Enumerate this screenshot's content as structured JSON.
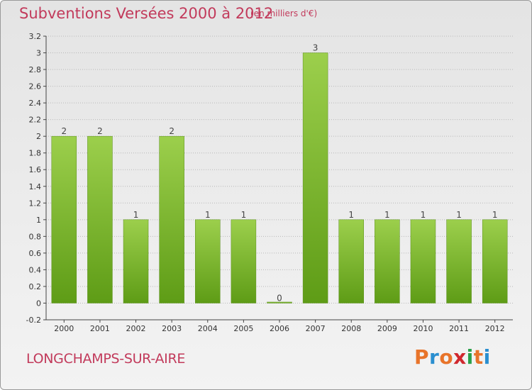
{
  "title": "Subventions Versées 2000 à 2012",
  "unit_note": "(en milliers d'€)",
  "commune": "LONGCHAMPS-SUR-AIRE",
  "logo": {
    "letters": [
      "P",
      "r",
      "o",
      "x",
      "i",
      "t",
      "i"
    ],
    "colors": [
      "#e8742a",
      "#2a8fd0",
      "#e8742a",
      "#d0282e",
      "#2aa04a",
      "#e8742a",
      "#2a8fd0"
    ]
  },
  "colors": {
    "bar_top": "#9ccf4c",
    "bar_bottom": "#5e9c16",
    "bar_edge": "#5a8f1a",
    "grid": "#b8b8b8",
    "title": "#c23a5b"
  },
  "chart_data": {
    "type": "bar",
    "title": "Subventions Versées 2000 à 2012",
    "subtitle": "(en milliers d'€)",
    "categories": [
      "2000",
      "2001",
      "2002",
      "2003",
      "2004",
      "2005",
      "2006",
      "2007",
      "2008",
      "2009",
      "2010",
      "2011",
      "2012"
    ],
    "values": [
      2,
      2,
      1,
      2,
      1,
      1,
      0,
      3,
      1,
      1,
      1,
      1,
      1
    ],
    "data_labels": [
      "2",
      "2",
      "1",
      "2",
      "1",
      "1",
      "0",
      "3",
      "1",
      "1",
      "1",
      "1",
      "1"
    ],
    "ylim": [
      -0.2,
      3.2
    ],
    "yticks": [
      "-0.2",
      "0",
      "0.2",
      "0.4",
      "0.6",
      "0.8",
      "1",
      "1.2",
      "1.4",
      "1.6",
      "1.8",
      "2",
      "2.2",
      "2.4",
      "2.6",
      "2.8",
      "3",
      "3.2"
    ],
    "ytick_values": [
      -0.2,
      0,
      0.2,
      0.4,
      0.6,
      0.8,
      1,
      1.2,
      1.4,
      1.6,
      1.8,
      2,
      2.2,
      2.4,
      2.6,
      2.8,
      3,
      3.2
    ],
    "grid": true
  }
}
